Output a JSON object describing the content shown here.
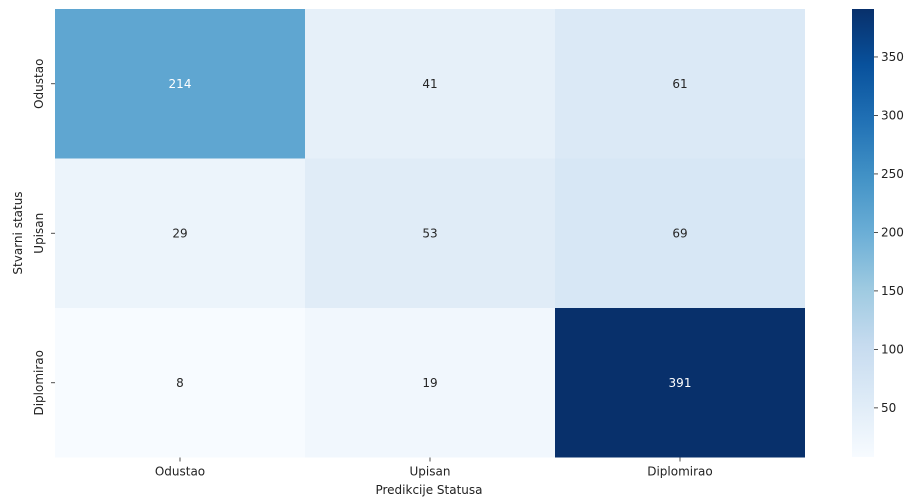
{
  "chart_data": {
    "type": "heatmap",
    "title": "",
    "xlabel": "Predikcije Statusa",
    "ylabel": "Stvarni status",
    "x_categories": [
      "Odustao",
      "Upisan",
      "Diplomirao"
    ],
    "y_categories": [
      "Odustao",
      "Upisan",
      "Diplomirao"
    ],
    "values": [
      [
        214,
        41,
        61
      ],
      [
        29,
        53,
        69
      ],
      [
        8,
        19,
        391
      ]
    ],
    "colormap": "Blues",
    "colorbar": {
      "min": 8,
      "max": 391,
      "ticks": [
        50,
        100,
        150,
        200,
        250,
        300,
        350
      ]
    },
    "annotations": true
  }
}
